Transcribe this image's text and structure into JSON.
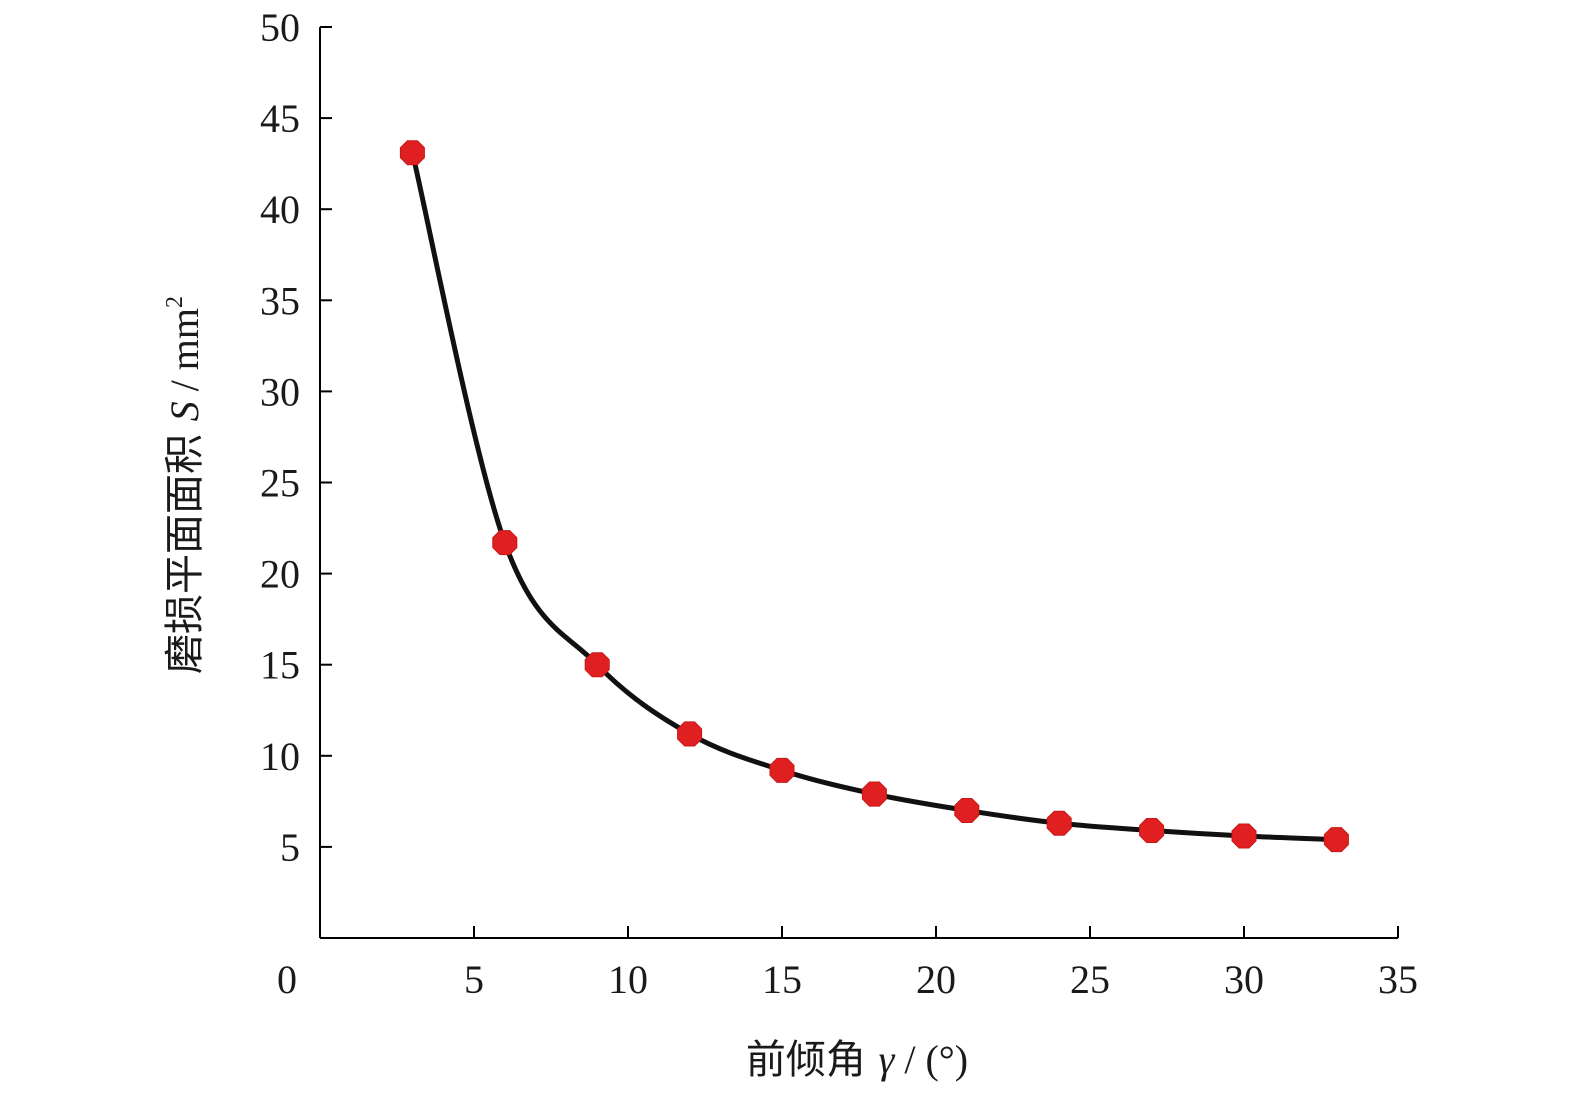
{
  "chart_data": {
    "type": "line",
    "xlabel": {
      "prefix": "前倾角 ",
      "symbol": "γ",
      "suffix": " / (°)"
    },
    "ylabel": {
      "prefix": "磨损平面面积 ",
      "symbol": "S",
      "suffix": " / mm",
      "superscript": "2"
    },
    "xlim": [
      0,
      35
    ],
    "ylim": [
      0,
      50
    ],
    "x_ticks": [
      0,
      5,
      10,
      15,
      20,
      25,
      30,
      35
    ],
    "y_ticks": [
      5,
      10,
      15,
      20,
      25,
      30,
      35,
      40,
      45,
      50
    ],
    "grid": false,
    "series": [
      {
        "marker_color": "#e02020",
        "line_color": "#111111",
        "points": [
          {
            "x": 3,
            "y": 43.1
          },
          {
            "x": 6,
            "y": 21.7
          },
          {
            "x": 9,
            "y": 15.0
          },
          {
            "x": 12,
            "y": 11.2
          },
          {
            "x": 15,
            "y": 9.2
          },
          {
            "x": 18,
            "y": 7.9
          },
          {
            "x": 21,
            "y": 7.0
          },
          {
            "x": 24,
            "y": 6.3
          },
          {
            "x": 27,
            "y": 5.9
          },
          {
            "x": 30,
            "y": 5.6
          },
          {
            "x": 33,
            "y": 5.4
          }
        ]
      }
    ]
  }
}
